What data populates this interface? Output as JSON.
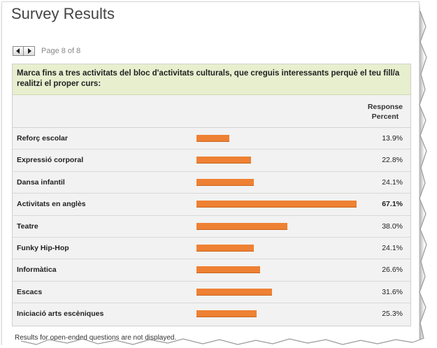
{
  "page": {
    "title": "Survey Results",
    "page_info": "Page 8 of 8",
    "footnote": "Results for open-ended questions are not displayed."
  },
  "pager": {
    "prev_icon": "arrow-left-icon",
    "next_icon": "arrow-right-icon"
  },
  "question": {
    "text": "Marca fins a tres activitats del bloc d'activitats culturals, que creguis interessants perquè el teu fill/a realitzi el proper curs:",
    "column_header_line1": "Response",
    "column_header_line2": "Percent"
  },
  "colors": {
    "bar": "#ee8133",
    "question_bg": "#e7efcf",
    "row_bg": "#f2f2f2"
  },
  "chart_data": {
    "type": "bar",
    "categories": [
      "Reforç escolar",
      "Expressió corporal",
      "Dansa infantil",
      "Activitats en anglès",
      "Teatre",
      "Funky Hip-Hop",
      "Informàtica",
      "Escacs",
      "Iniciació arts escèniques"
    ],
    "values": [
      13.9,
      22.8,
      24.1,
      67.1,
      38.0,
      24.1,
      26.6,
      31.6,
      25.3
    ],
    "value_labels": [
      "13.9%",
      "22.8%",
      "24.1%",
      "67.1%",
      "38.0%",
      "24.1%",
      "26.6%",
      "31.6%",
      "25.3%"
    ],
    "ylabel": "Response Percent",
    "ylim": [
      0,
      100
    ]
  }
}
